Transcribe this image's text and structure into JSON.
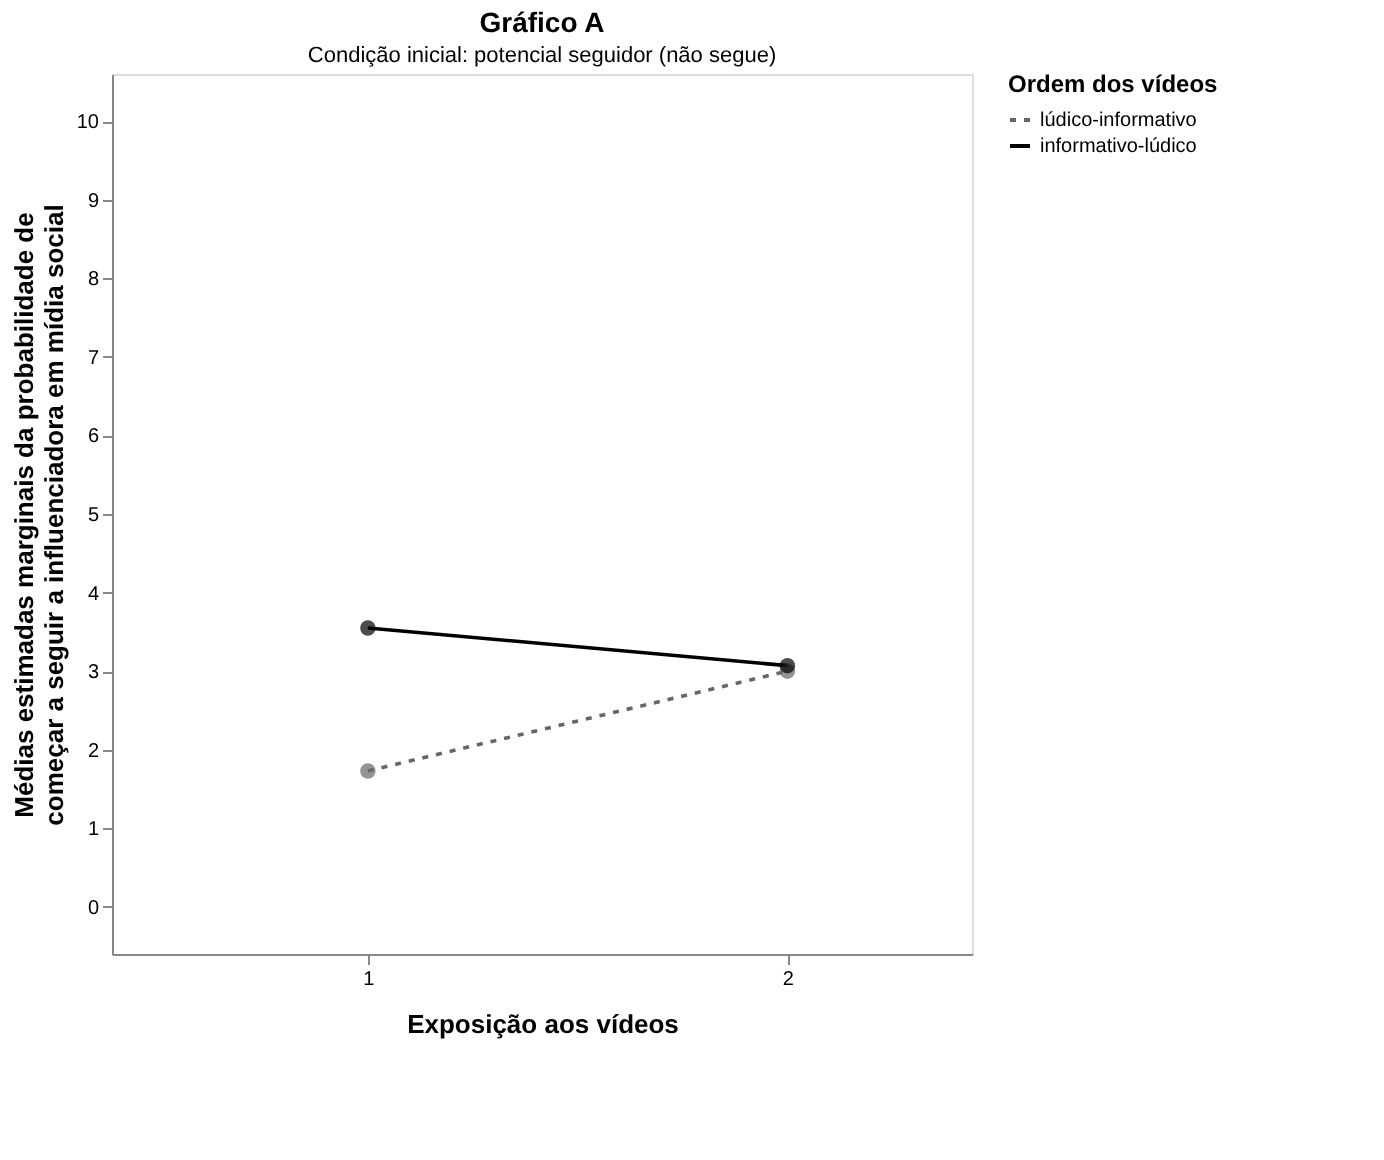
{
  "chart_data": {
    "type": "line",
    "title": "Gráfico A",
    "subtitle": "Condição inicial: potencial seguidor (não segue)",
    "xlabel": "Exposição aos vídeos",
    "ylabel": "Médias estimadas marginais da probabilidade de\ncomeçar a seguir a influenciadora em mídia social",
    "legend_title": "Ordem dos vídeos",
    "categories": [
      "1",
      "2"
    ],
    "series": [
      {
        "name": "lúdico-informativo",
        "color": "#666666",
        "values": [
          1.73,
          3.0
        ],
        "line_style": "dotted"
      },
      {
        "name": "informativo-lúdico",
        "color": "#000000",
        "values": [
          3.55,
          3.07
        ],
        "line_style": "solid"
      }
    ],
    "ylim": [
      -0.6,
      10.6
    ],
    "yticks": [
      0,
      1,
      2,
      3,
      4,
      5,
      6,
      7,
      8,
      9,
      10
    ],
    "marker": "circle",
    "legend": "top right",
    "grid": false
  }
}
